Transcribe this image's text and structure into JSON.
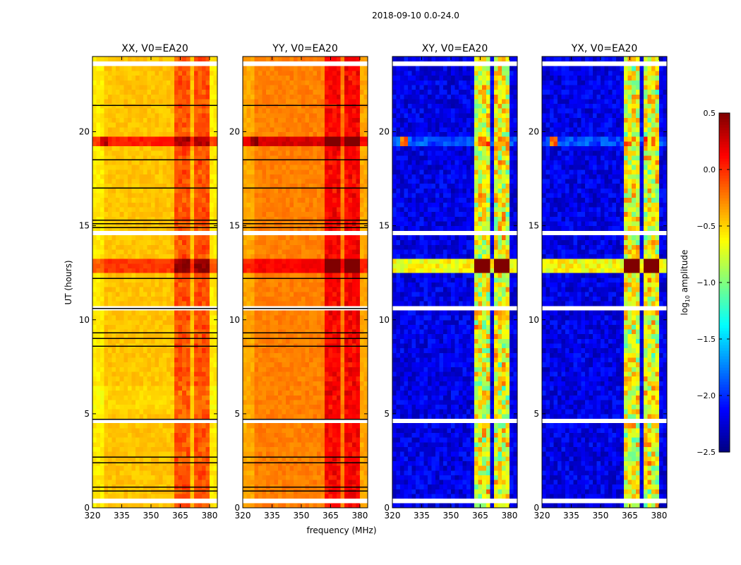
{
  "chart_data": {
    "type": "heatmap",
    "title": "2018-09-10 0.0-24.0",
    "xlabel": "frequency (MHz)",
    "ylabel": "UT (hours)",
    "xlim": [
      320,
      384
    ],
    "ylim": [
      0,
      24
    ],
    "xticks": [
      320,
      335,
      350,
      365,
      380
    ],
    "yticks": [
      0,
      5,
      10,
      15,
      20
    ],
    "colorbar": {
      "label": "log10 amplitude",
      "label_main": "log",
      "label_sub": "10",
      "label_rest": " amplitude",
      "colormap": "jet",
      "range": [
        -2.5,
        0.5
      ],
      "ticks": [
        "0.5",
        "0.0",
        "−0.5",
        "−1.0",
        "−1.5",
        "−2.0",
        "−2.5"
      ],
      "tick_values": [
        0.5,
        0.0,
        -0.5,
        -1.0,
        -1.5,
        -2.0,
        -2.5
      ]
    },
    "panels": [
      {
        "title": "XX, V0=EA20",
        "base_level": -0.45,
        "rfi_boost": 0.35,
        "event_boost": 0.6,
        "kind": "auto"
      },
      {
        "title": "YY, V0=EA20",
        "base_level": -0.25,
        "rfi_boost": 0.4,
        "event_boost": 0.55,
        "kind": "auto"
      },
      {
        "title": "XY, V0=EA20",
        "base_level": -2.2,
        "rfi_boost": 1.6,
        "event_boost": 2.6,
        "kind": "cross"
      },
      {
        "title": "YX, V0=EA20",
        "base_level": -2.2,
        "rfi_boost": 1.6,
        "event_boost": 2.6,
        "kind": "cross"
      }
    ],
    "rfi_stripes_mhz": [
      [
        362,
        366
      ],
      [
        367,
        371
      ],
      [
        372,
        376
      ],
      [
        377,
        381
      ]
    ],
    "event_ut_hours": [
      12.5,
      13.25
    ],
    "flare_ut_hours": [
      19.3,
      19.7
    ],
    "flare_freq_mhz": [
      324,
      328
    ],
    "flagged_ut_hours": [
      [
        0.3,
        0.55
      ],
      [
        1.45,
        1.6
      ],
      [
        4.55,
        4.8
      ],
      [
        10.45,
        10.75
      ],
      [
        14.6,
        14.75
      ],
      [
        23.5,
        23.75
      ]
    ],
    "black_line_ut_hours": [
      0.9,
      1.1,
      2.4,
      2.7,
      4.7,
      8.6,
      9.0,
      9.3,
      10.6,
      12.2,
      14.9,
      15.1,
      15.3,
      17.0,
      18.5,
      21.4
    ]
  }
}
